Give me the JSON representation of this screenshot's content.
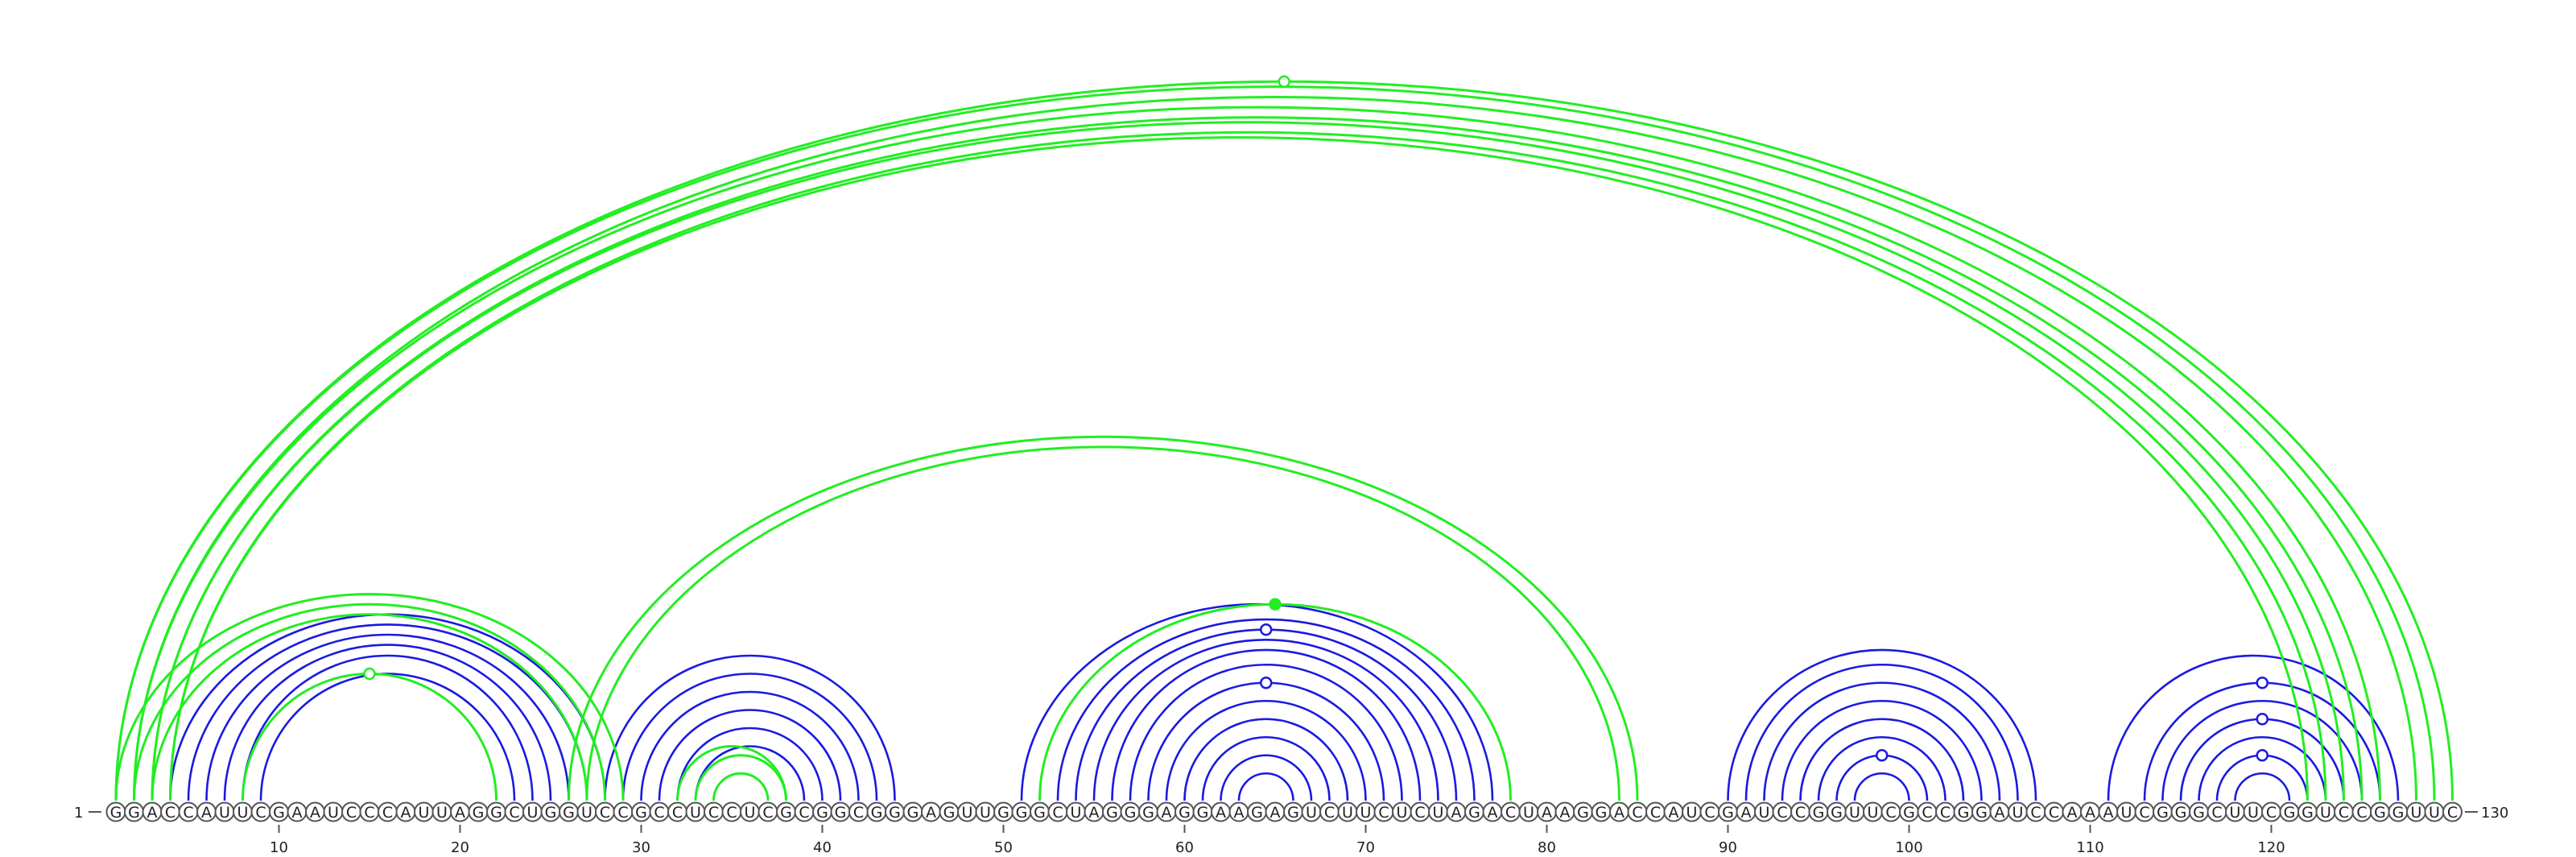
{
  "diagram": {
    "type": "rna-arc-diagram",
    "sequence": "GGACCAUUCGAAUCCCAUUAGGCUGGUCCGCCUCCUCGCGGCGGGAGUUGGGCUAGGGAGGAAGAGUCUUCUCUAGACUAAGGACCAUCGAUCCGGUUCGCCGGAUCCAAAUCGGGCUUCGGUCCGGUUC",
    "start_label": "1",
    "end_label": "130",
    "tick_positions": [
      10,
      20,
      30,
      40,
      50,
      60,
      70,
      80,
      90,
      100,
      110,
      120
    ],
    "colors": {
      "blue": "#1a1ae0",
      "green": "#22ee22"
    },
    "blue_pairs": [
      [
        4,
        28
      ],
      [
        5,
        27
      ],
      [
        6,
        26
      ],
      [
        7,
        25
      ],
      [
        8,
        24
      ],
      [
        9,
        23
      ],
      [
        28,
        44
      ],
      [
        29,
        43
      ],
      [
        30,
        42
      ],
      [
        31,
        41
      ],
      [
        32,
        40
      ],
      [
        33,
        39
      ],
      [
        51,
        77
      ],
      [
        53,
        76
      ],
      [
        54,
        75
      ],
      [
        55,
        74
      ],
      [
        56,
        73
      ],
      [
        57,
        72
      ],
      [
        58,
        71
      ],
      [
        59,
        70
      ],
      [
        60,
        69
      ],
      [
        61,
        68
      ],
      [
        62,
        67
      ],
      [
        63,
        66
      ],
      [
        90,
        107
      ],
      [
        91,
        106
      ],
      [
        92,
        105
      ],
      [
        93,
        104
      ],
      [
        94,
        103
      ],
      [
        95,
        102
      ],
      [
        96,
        101
      ],
      [
        97,
        100
      ],
      [
        111,
        127
      ],
      [
        113,
        126
      ],
      [
        114,
        125
      ],
      [
        115,
        124
      ],
      [
        116,
        123
      ],
      [
        117,
        122
      ],
      [
        118,
        121
      ]
    ],
    "green_pairs": [
      [
        1,
        130
      ],
      [
        1,
        129
      ],
      [
        2,
        128
      ],
      [
        2,
        126
      ],
      [
        3,
        125
      ],
      [
        3,
        124
      ],
      [
        4,
        123
      ],
      [
        4,
        122
      ],
      [
        1,
        29
      ],
      [
        2,
        28
      ],
      [
        3,
        27
      ],
      [
        8,
        22
      ],
      [
        26,
        85
      ],
      [
        27,
        84
      ],
      [
        33,
        38
      ],
      [
        32,
        38
      ],
      [
        34,
        37
      ],
      [
        52,
        78
      ]
    ],
    "green_markers_open": [
      65,
      15
    ],
    "green_markers_filled": [
      64.5
    ],
    "blue_markers_open": [
      {
        "center": 64.5,
        "pair": [
          54,
          75
        ]
      },
      {
        "center": 64.5,
        "pair": [
          58,
          71
        ]
      },
      {
        "center": 98.5,
        "pair": [
          96,
          101
        ]
      },
      {
        "center": 119.5,
        "pair": [
          113,
          126
        ]
      },
      {
        "center": 119.5,
        "pair": [
          115,
          124
        ]
      },
      {
        "center": 119.5,
        "pair": [
          117,
          122
        ]
      }
    ]
  }
}
